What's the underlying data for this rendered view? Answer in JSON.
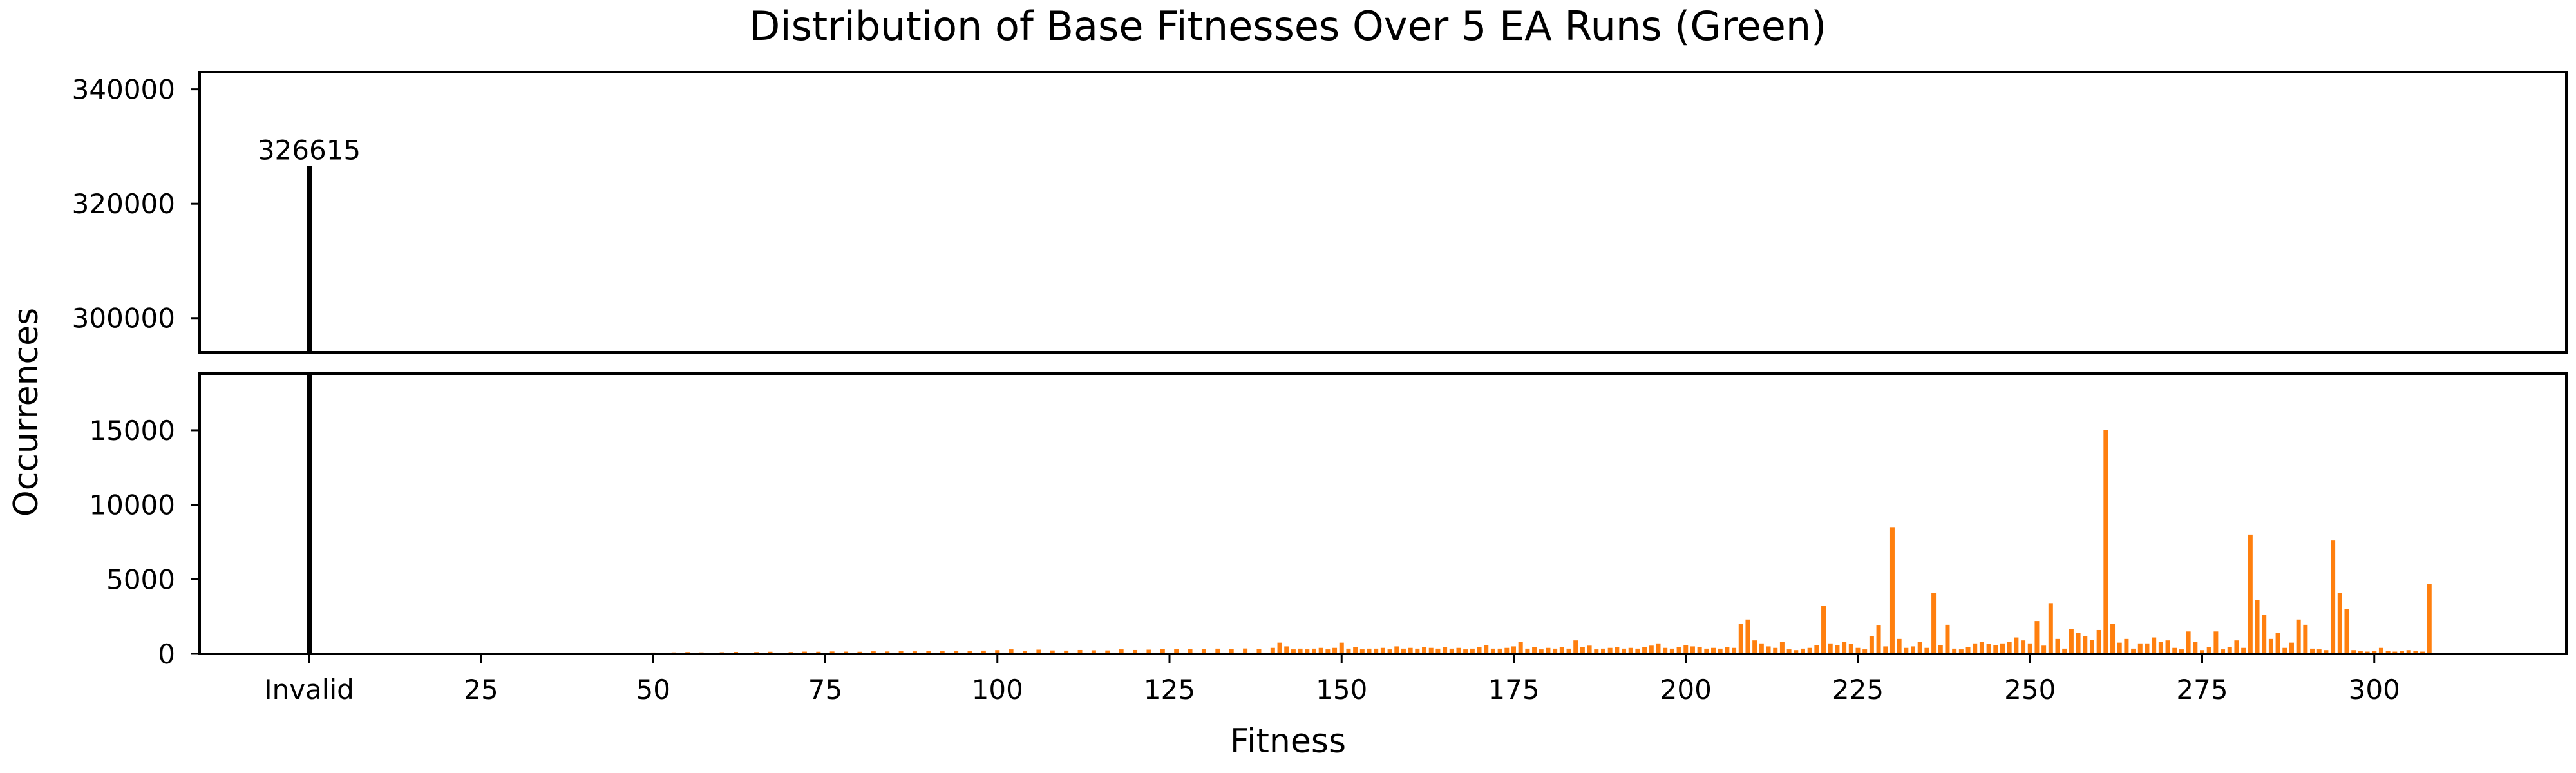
{
  "chart_data": {
    "type": "bar",
    "title": "Distribution of Base Fitnesses Over 5 EA Runs (Green)",
    "xlabel": "Fitness",
    "ylabel": "Occurrences",
    "broken_y_axis": true,
    "invalid": {
      "label": "Invalid",
      "count": 326615,
      "color": "#000000",
      "annotation": "326615"
    },
    "bar_color": "#ff7f0e",
    "x_ticks": [
      "Invalid",
      "25",
      "50",
      "75",
      "100",
      "125",
      "150",
      "175",
      "200",
      "225",
      "250",
      "275",
      "300"
    ],
    "upper_panel": {
      "ylim": [
        294000,
        343000
      ],
      "yticks": [
        "300000",
        "320000",
        "340000"
      ]
    },
    "lower_panel": {
      "ylim": [
        0,
        18800
      ],
      "yticks": [
        "0",
        "5000",
        "10000",
        "15000"
      ]
    },
    "series": [
      {
        "fitness": [
          40,
          42,
          45,
          48,
          50,
          53,
          55,
          57,
          60,
          62,
          65,
          67,
          70,
          72,
          74,
          76,
          78,
          80,
          82,
          84,
          86,
          88,
          90,
          92,
          94,
          96,
          98,
          100,
          102,
          104,
          106,
          108,
          110,
          112,
          114,
          116,
          118,
          120,
          122,
          124,
          126,
          128,
          130,
          132,
          134,
          136,
          138,
          140,
          141,
          142,
          143,
          144,
          145,
          146,
          147,
          148,
          149,
          150,
          151,
          152,
          153,
          154,
          155,
          156,
          157,
          158,
          159,
          160,
          161,
          162,
          163,
          164,
          165,
          166,
          167,
          168,
          169,
          170,
          171,
          172,
          173,
          174,
          175,
          176,
          177,
          178,
          179,
          180,
          181,
          182,
          183,
          184,
          185,
          186,
          187,
          188,
          189,
          190,
          191,
          192,
          193,
          194,
          195,
          196,
          197,
          198,
          199,
          200,
          201,
          202,
          203,
          204,
          205,
          206,
          207,
          208,
          209,
          210,
          211,
          212,
          213,
          214,
          215,
          216,
          217,
          218,
          219,
          220,
          221,
          222,
          223,
          224,
          225,
          226,
          227,
          228,
          229,
          230,
          231,
          232,
          233,
          234,
          235,
          236,
          237,
          238,
          239,
          240,
          241,
          242,
          243,
          244,
          245,
          246,
          247,
          248,
          249,
          250,
          251,
          252,
          253,
          254,
          255,
          256,
          257,
          258,
          259,
          260,
          261,
          262,
          263,
          264,
          265,
          266,
          267,
          268,
          269,
          270,
          271,
          272,
          273,
          274,
          275,
          276,
          277,
          278,
          279,
          280,
          281,
          282,
          283,
          284,
          285,
          286,
          287,
          288,
          289,
          290,
          291,
          292,
          293,
          294,
          295,
          296,
          297,
          298,
          299,
          300,
          301,
          302,
          303,
          304,
          305,
          306,
          307,
          308
        ],
        "counts": [
          50,
          60,
          60,
          80,
          90,
          100,
          120,
          100,
          110,
          130,
          120,
          140,
          120,
          150,
          140,
          160,
          150,
          140,
          170,
          160,
          180,
          170,
          200,
          190,
          210,
          180,
          220,
          250,
          300,
          200,
          280,
          230,
          220,
          260,
          240,
          230,
          300,
          260,
          280,
          310,
          330,
          340,
          310,
          350,
          330,
          360,
          340,
          400,
          750,
          500,
          300,
          350,
          300,
          350,
          400,
          300,
          400,
          750,
          350,
          450,
          300,
          350,
          350,
          400,
          300,
          500,
          350,
          400,
          350,
          450,
          400,
          350,
          450,
          350,
          400,
          300,
          350,
          450,
          600,
          350,
          350,
          400,
          500,
          800,
          350,
          450,
          300,
          400,
          350,
          450,
          350,
          900,
          450,
          550,
          300,
          350,
          400,
          450,
          350,
          400,
          350,
          450,
          550,
          700,
          400,
          350,
          450,
          600,
          500,
          450,
          350,
          400,
          350,
          450,
          400,
          2000,
          2300,
          900,
          700,
          500,
          400,
          800,
          300,
          250,
          350,
          400,
          600,
          3200,
          700,
          600,
          800,
          650,
          400,
          300,
          1200,
          1900,
          500,
          8500,
          1000,
          400,
          500,
          800,
          400,
          4100,
          600,
          1950,
          350,
          300,
          450,
          700,
          800,
          650,
          600,
          700,
          800,
          1100,
          900,
          700,
          2200,
          550,
          3400,
          1000,
          350,
          1650,
          1400,
          1200,
          950,
          1600,
          15000,
          2000,
          750,
          1000,
          350,
          700,
          700,
          1100,
          800,
          900,
          400,
          300,
          1500,
          800,
          250,
          450,
          1500,
          300,
          450,
          900,
          400,
          8000,
          3600,
          2600,
          1000,
          1400,
          400,
          750,
          2300,
          1950,
          350,
          300,
          250,
          7600,
          4100,
          3000,
          250,
          200,
          150,
          200,
          400,
          200,
          150,
          200,
          250,
          200,
          150,
          4700,
          450
        ]
      }
    ]
  }
}
